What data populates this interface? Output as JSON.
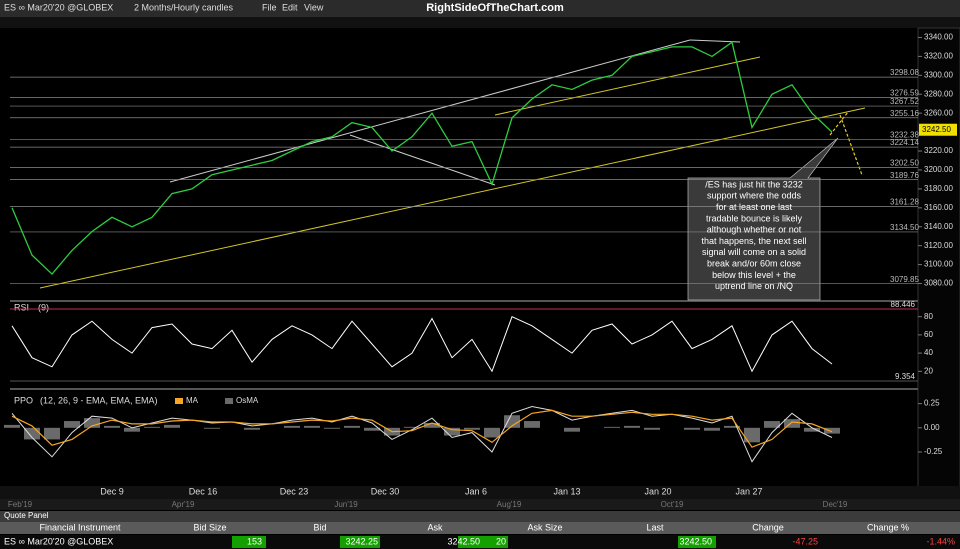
{
  "toolbar": {
    "symbol": "ES ∞ Mar20'20 @GLOBEX",
    "timeframe": "2 Months/Hourly candles",
    "menu": [
      "File",
      "Edit",
      "View"
    ],
    "brand": "RightSideOfTheChart.com"
  },
  "price_chart": {
    "ylim": [
      3070,
      3350
    ],
    "yticks": [
      {
        "value": 3340,
        "label": "3340.00"
      },
      {
        "value": 3320,
        "label": "3320.00"
      },
      {
        "value": 3300,
        "label": "3300.00"
      },
      {
        "value": 3280,
        "label": "3280.00"
      },
      {
        "value": 3260,
        "label": "3260.00"
      },
      {
        "value": 3220,
        "label": "3220.00"
      },
      {
        "value": 3200,
        "label": "3200.00"
      },
      {
        "value": 3180,
        "label": "3180.00"
      },
      {
        "value": 3160,
        "label": "3160.00"
      },
      {
        "value": 3140,
        "label": "3140.00"
      },
      {
        "value": 3120,
        "label": "3120.00"
      },
      {
        "value": 3100,
        "label": "3100.00"
      },
      {
        "value": 3080,
        "label": "3080.00"
      }
    ],
    "levels": [
      {
        "value": 3298.08,
        "label": "3298.08"
      },
      {
        "value": 3276.59,
        "label": "3276.59"
      },
      {
        "value": 3267.52,
        "label": "3267.52"
      },
      {
        "value": 3255.16,
        "label": "3255.16"
      },
      {
        "value": 3232.38,
        "label": "3232.38"
      },
      {
        "value": 3224.14,
        "label": "3224.14"
      },
      {
        "value": 3202.5,
        "label": "3202.50"
      },
      {
        "value": 3189.76,
        "label": "3189.76"
      },
      {
        "value": 3161.28,
        "label": "3161.28"
      },
      {
        "value": 3134.5,
        "label": "3134.50"
      },
      {
        "value": 3079.85,
        "label": "3079.85"
      }
    ],
    "color": "#2ecc40",
    "values": [
      3160,
      3110,
      3090,
      3115,
      3135,
      3150,
      3140,
      3150,
      3175,
      3180,
      3195,
      3200,
      3205,
      3210,
      3220,
      3230,
      3235,
      3250,
      3245,
      3220,
      3235,
      3260,
      3225,
      3230,
      3185,
      3255,
      3275,
      3290,
      3285,
      3295,
      3300,
      3320,
      3325,
      3330,
      3330,
      3320,
      3335,
      3245,
      3280,
      3290,
      3260,
      3240
    ],
    "last": {
      "value": 3242.5,
      "label": "3242.50"
    },
    "annotation": [
      "/ES has just hit the 3232",
      "support where the odds",
      "for at least one last",
      "tradable bounce is likely",
      "although whether or not",
      "that happens, the next sell",
      "signal will come on a solid",
      "break and/or 60m close",
      "below this level + the",
      "uptrend line on /NQ"
    ]
  },
  "rsi": {
    "label": "RSI",
    "params": "(9)",
    "ylim": [
      5,
      95
    ],
    "yticks": [
      80,
      60,
      40,
      20
    ],
    "max": 88.446,
    "min": 9.354,
    "color": "#ffffff",
    "values": [
      70,
      35,
      25,
      60,
      75,
      55,
      40,
      68,
      72,
      50,
      45,
      65,
      30,
      55,
      70,
      60,
      45,
      75,
      50,
      25,
      40,
      78,
      35,
      55,
      20,
      80,
      70,
      55,
      40,
      65,
      72,
      50,
      60,
      75,
      45,
      55,
      70,
      20,
      60,
      75,
      45,
      28
    ]
  },
  "ppo": {
    "label": "PPO",
    "params": "(12, 26, 9 - EMA, EMA, EMA)",
    "ylim": [
      -0.55,
      0.36
    ],
    "yticks": [
      0.25,
      {
        "value": 0,
        "label": "0.00"
      },
      -0.25
    ],
    "series": [
      {
        "name": "MA",
        "color": "#f5a623",
        "values": [
          0.12,
          0.02,
          -0.18,
          -0.12,
          0.02,
          0.08,
          0.04,
          0.04,
          0.07,
          0.08,
          0.06,
          0.06,
          0.04,
          0.04,
          0.06,
          0.08,
          0.07,
          0.1,
          0.08,
          -0.04,
          -0.03,
          0.05,
          -0.02,
          -0.03,
          -0.15,
          0.02,
          0.15,
          0.18,
          0.12,
          0.12,
          0.14,
          0.16,
          0.14,
          0.14,
          0.12,
          0.08,
          0.1,
          -0.2,
          -0.12,
          0.06,
          0.04,
          -0.04
        ]
      },
      {
        "name": "OsMA",
        "color": "#6a6a6a",
        "values": [
          0.03,
          -0.12,
          -0.12,
          0.07,
          0.1,
          0.02,
          -0.04,
          0.01,
          0.03,
          0,
          -0.01,
          0,
          -0.02,
          0,
          0.02,
          0.02,
          -0.01,
          0.02,
          -0.03,
          -0.08,
          0.01,
          0.05,
          -0.08,
          -0.02,
          -0.1,
          0.13,
          0.07,
          0,
          -0.04,
          0,
          0.01,
          0.02,
          -0.02,
          0,
          -0.02,
          -0.03,
          0.02,
          -0.15,
          0.07,
          0.09,
          -0.04,
          -0.06
        ]
      }
    ],
    "ppo_color": "#dddddd",
    "values": [
      0.15,
      -0.1,
      -0.3,
      -0.05,
      0.12,
      0.1,
      0,
      0.05,
      0.1,
      0.08,
      0.05,
      0.06,
      0.02,
      0.04,
      0.08,
      0.1,
      0.06,
      0.12,
      0.05,
      -0.12,
      -0.02,
      0.1,
      -0.1,
      -0.05,
      -0.25,
      0.15,
      0.22,
      0.18,
      0.08,
      0.12,
      0.15,
      0.18,
      0.12,
      0.14,
      0.1,
      0.05,
      0.12,
      -0.35,
      -0.05,
      0.15,
      0,
      -0.1
    ]
  },
  "dates": [
    "Dec 9",
    "Dec 16",
    "Dec 23",
    "Dec 30",
    "Jan 6",
    "Jan 13",
    "Jan 20",
    "Jan 27"
  ],
  "overview_dates": [
    "Feb'19",
    "Apr'19",
    "Jun'19",
    "Aug'19",
    "Oct'19",
    "Dec'19"
  ],
  "quote_panel": {
    "title": "Quote Panel",
    "columns": [
      "Financial Instrument",
      "Bid Size",
      "Bid",
      "Ask",
      "Ask Size",
      "Last",
      "Change",
      "Change %"
    ],
    "row": [
      "ES ∞ Mar20'20 @GLOBEX",
      "153",
      "3242.25",
      "3242.50",
      "20",
      "3242.50",
      "-47.25",
      "-1.44%"
    ]
  }
}
